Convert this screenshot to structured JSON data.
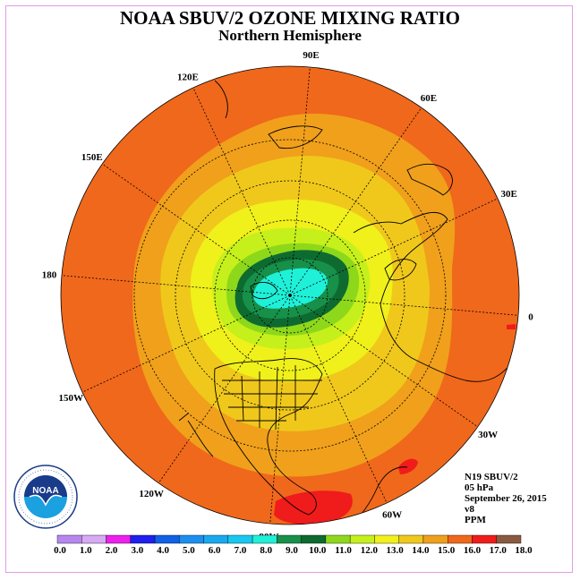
{
  "header": {
    "title": "NOAA SBUV/2 OZONE MIXING RATIO",
    "subtitle": "Northern Hemisphere"
  },
  "map": {
    "projection": "north-polar-stereographic",
    "longitude_labels": [
      "90E",
      "60E",
      "30E",
      "0",
      "30W",
      "60W",
      "90W",
      "120W",
      "150W",
      "180",
      "150E",
      "120E"
    ]
  },
  "info": {
    "instrument": "N19 SBUV/2",
    "level": "05 hPa",
    "date": "September 26, 2015",
    "version": "v8",
    "units": "PPM"
  },
  "logo": {
    "text": "NOAA",
    "ring_text": "NATIONAL OCEANIC AND ATMOSPHERIC ADMINISTRATION · U.S. DEPARTMENT OF COMMERCE"
  },
  "colorbar": {
    "ticks": [
      "0.0",
      "1.0",
      "2.0",
      "3.0",
      "4.0",
      "5.0",
      "6.0",
      "7.0",
      "8.0",
      "9.0",
      "10.0",
      "11.0",
      "12.0",
      "13.0",
      "14.0",
      "15.0",
      "16.0",
      "17.0",
      "18.0"
    ],
    "colors": [
      "#b787f0",
      "#d6aaf4",
      "#ee1fee",
      "#1f1ff0",
      "#1060e8",
      "#1a8ff0",
      "#17aaf0",
      "#17c8f0",
      "#1ff0d8",
      "#17904a",
      "#0e6b30",
      "#8ed81b",
      "#c6f01b",
      "#f0f01b",
      "#f0c81b",
      "#f0a01b",
      "#f0681b",
      "#f01b1b",
      "#8a5a40"
    ]
  }
}
